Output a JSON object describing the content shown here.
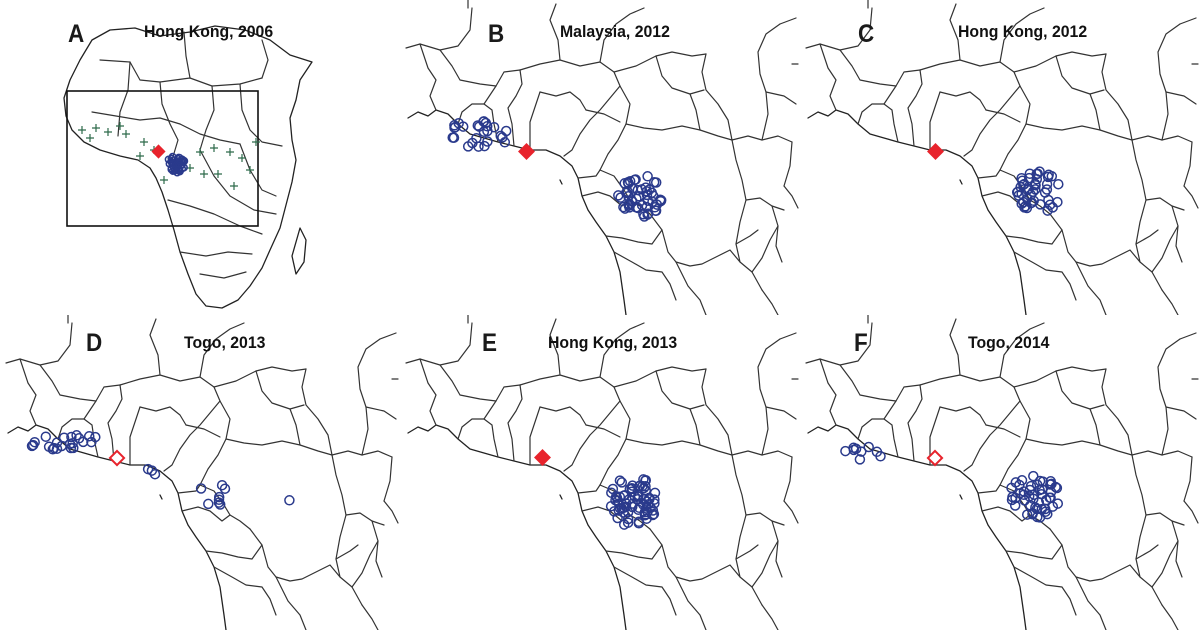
{
  "colors": {
    "case_marker": "#2a3a8c",
    "source_marker": "#e8232c",
    "cross_marker": "#2d6a4a",
    "borders": "#333333"
  },
  "panels": [
    {
      "id": "A",
      "letter": "A",
      "title": "Hong Kong, 2006",
      "view": "continent",
      "source_style": "filled-diamond"
    },
    {
      "id": "B",
      "letter": "B",
      "title": "Malaysia, 2012",
      "view": "regional",
      "source_style": "filled-diamond"
    },
    {
      "id": "C",
      "letter": "C",
      "title": "Hong Kong, 2012",
      "view": "regional",
      "source_style": "filled-diamond"
    },
    {
      "id": "D",
      "letter": "D",
      "title": "Togo, 2013",
      "view": "regional",
      "source_style": "open-diamond"
    },
    {
      "id": "E",
      "letter": "E",
      "title": "Hong Kong, 2013",
      "view": "regional",
      "source_style": "filled-diamond"
    },
    {
      "id": "F",
      "letter": "F",
      "title": "Togo, 2014",
      "view": "regional",
      "source_style": "open-diamond"
    }
  ]
}
